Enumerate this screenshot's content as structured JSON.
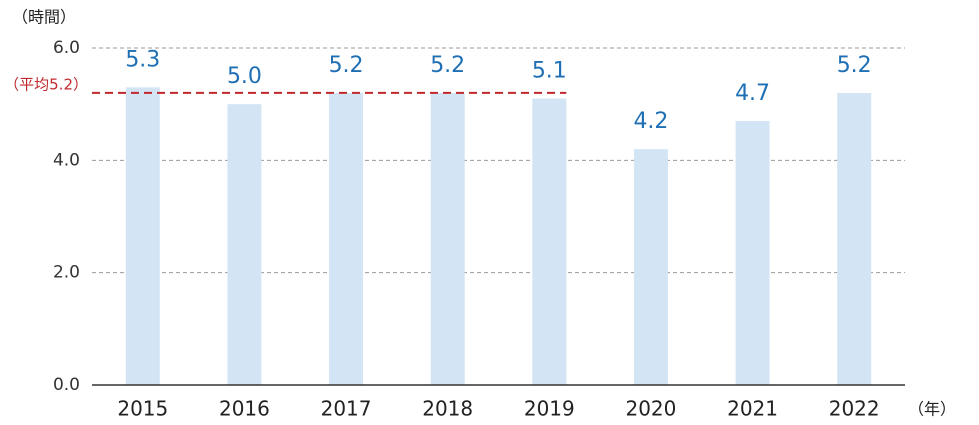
{
  "chart_data": {
    "type": "bar",
    "y_unit": "（時間）",
    "x_unit": "（年）",
    "categories": [
      "2015",
      "2016",
      "2017",
      "2018",
      "2019",
      "2020",
      "2021",
      "2022"
    ],
    "values": [
      5.3,
      5.0,
      5.2,
      5.2,
      5.1,
      4.2,
      4.7,
      5.2
    ],
    "value_labels": [
      "5.3",
      "5.0",
      "5.2",
      "5.2",
      "5.1",
      "4.2",
      "4.7",
      "5.2"
    ],
    "color": "#d3e5f5",
    "label_color": "#1f6fb4",
    "ylim": [
      0,
      6
    ],
    "yticks": [
      {
        "value": 0,
        "label": "0.0"
      },
      {
        "value": 2,
        "label": "2.0"
      },
      {
        "value": 4,
        "label": "4.0"
      },
      {
        "value": 6,
        "label": "6.0"
      }
    ],
    "grid": true,
    "average": {
      "label": "（平均5.2）",
      "value": 5.2,
      "span": [
        "2015",
        "2019"
      ],
      "color": "#c0282d"
    }
  }
}
